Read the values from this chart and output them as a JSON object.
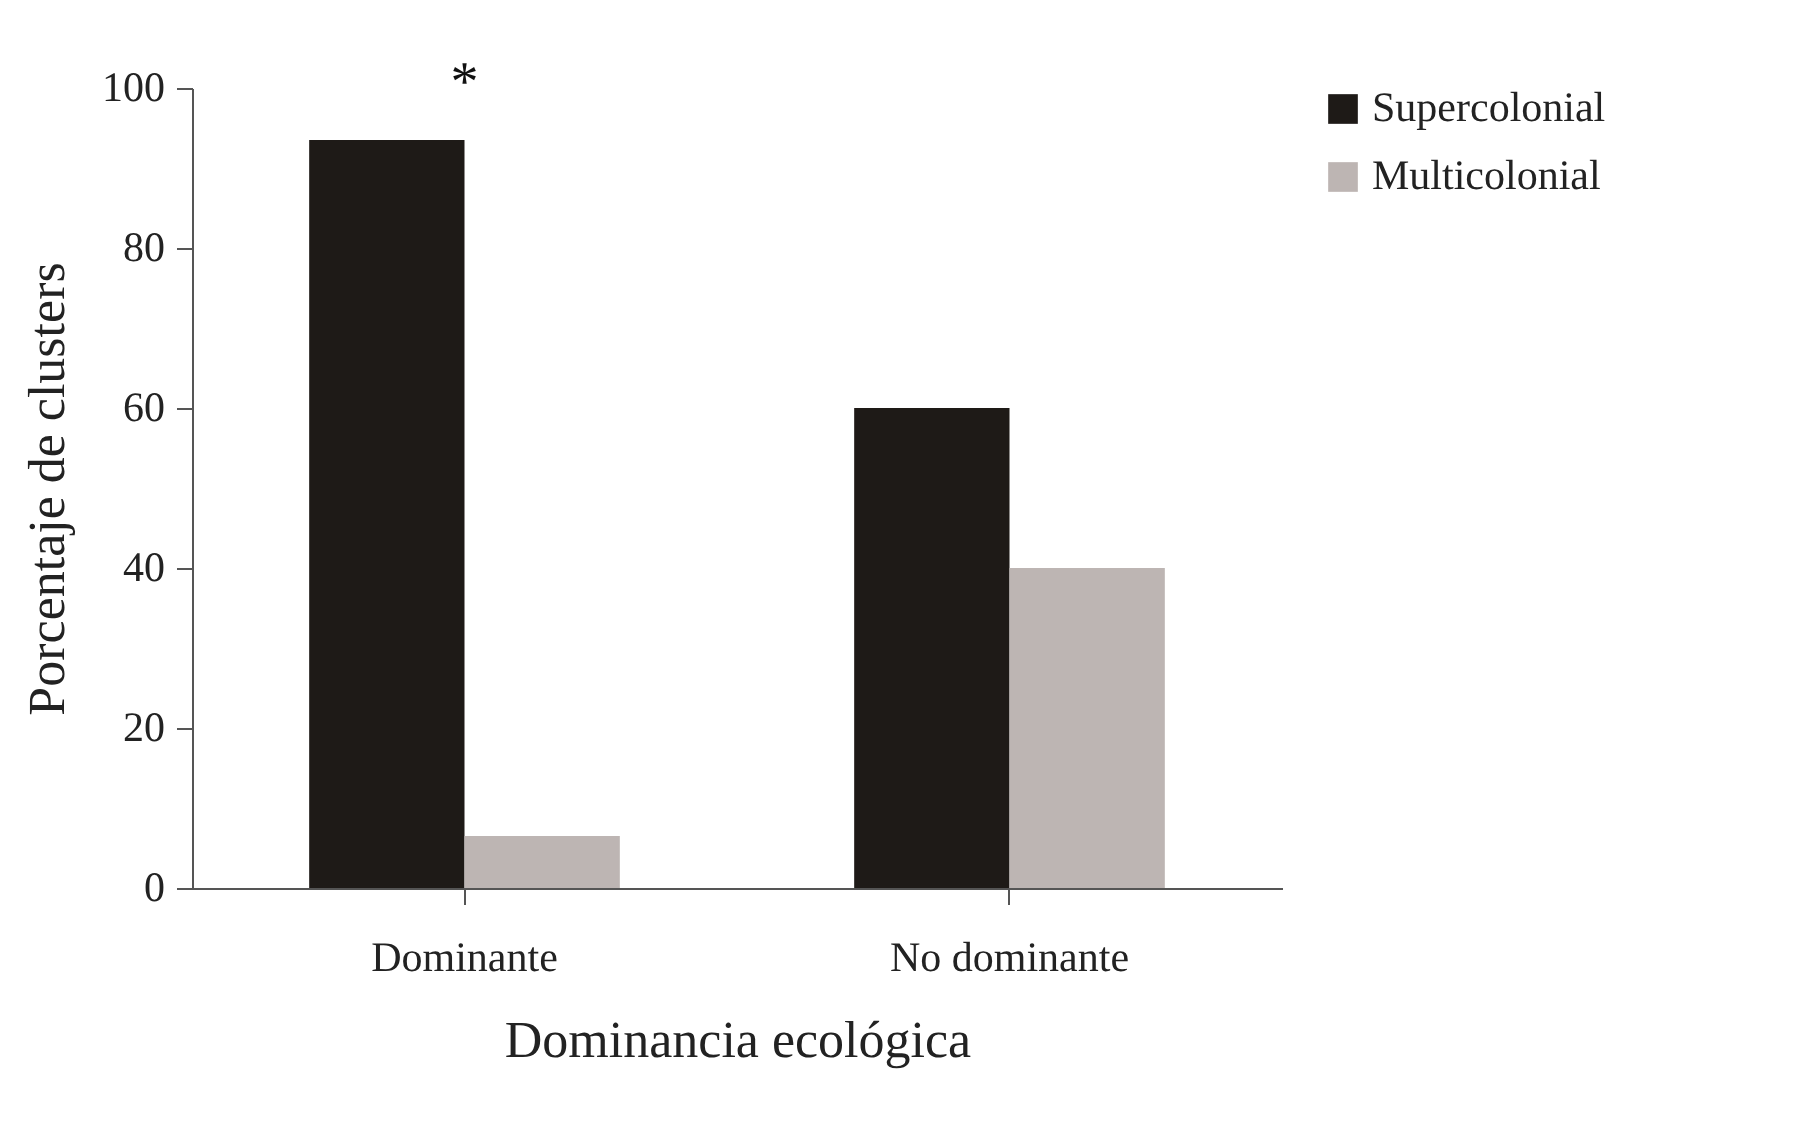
{
  "chart_data": {
    "type": "bar",
    "xlabel": "Dominancia ecológica",
    "ylabel": "Porcentaje de clusters",
    "categories": [
      "Dominante",
      "No dominante"
    ],
    "series": [
      {
        "name": "Supercolonial",
        "color": "#1e1a17",
        "values": [
          93.5,
          60
        ]
      },
      {
        "name": "Multicolonial",
        "color": "#bdb5b3",
        "values": [
          6.5,
          40
        ]
      }
    ],
    "ylim": [
      0,
      100
    ],
    "yticks": [
      0,
      20,
      40,
      60,
      80,
      100
    ],
    "grid": false,
    "legend": "top right",
    "annotations": [
      "*"
    ]
  }
}
